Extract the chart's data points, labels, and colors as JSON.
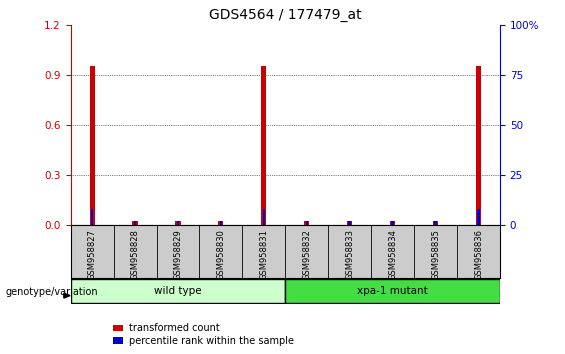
{
  "title": "GDS4564 / 177479_at",
  "samples": [
    "GSM958827",
    "GSM958828",
    "GSM958829",
    "GSM958830",
    "GSM958831",
    "GSM958832",
    "GSM958833",
    "GSM958834",
    "GSM958835",
    "GSM958836"
  ],
  "transformed_count": [
    0.95,
    0.02,
    0.02,
    0.02,
    0.95,
    0.02,
    0.02,
    0.02,
    0.02,
    0.95
  ],
  "percentile_rank_pct": [
    8.0,
    2.0,
    2.0,
    2.0,
    8.0,
    2.0,
    2.0,
    2.0,
    2.0,
    8.0
  ],
  "ylim_left": [
    0,
    1.2
  ],
  "ylim_right": [
    0,
    100
  ],
  "yticks_left": [
    0,
    0.3,
    0.6,
    0.9,
    1.2
  ],
  "yticks_right": [
    0,
    25,
    50,
    75,
    100
  ],
  "groups": [
    {
      "label": "wild type",
      "start": 0,
      "end": 5,
      "color": "#ccffcc"
    },
    {
      "label": "xpa-1 mutant",
      "start": 5,
      "end": 10,
      "color": "#44dd44"
    }
  ],
  "genotype_label": "genotype/variation",
  "legend_items": [
    {
      "label": "transformed count",
      "color": "#cc0000"
    },
    {
      "label": "percentile rank within the sample",
      "color": "#0000cc"
    }
  ],
  "bar_color_red": "#cc0000",
  "bar_color_blue": "#0000cc",
  "axis_color_left": "#cc0000",
  "axis_color_right": "#0000cc",
  "background_color": "#ffffff",
  "plot_bg_color": "#ffffff",
  "red_bar_width": 0.12,
  "blue_bar_width": 0.06,
  "sample_box_color": "#cccccc",
  "title_fontsize": 10,
  "tick_fontsize": 7.5
}
